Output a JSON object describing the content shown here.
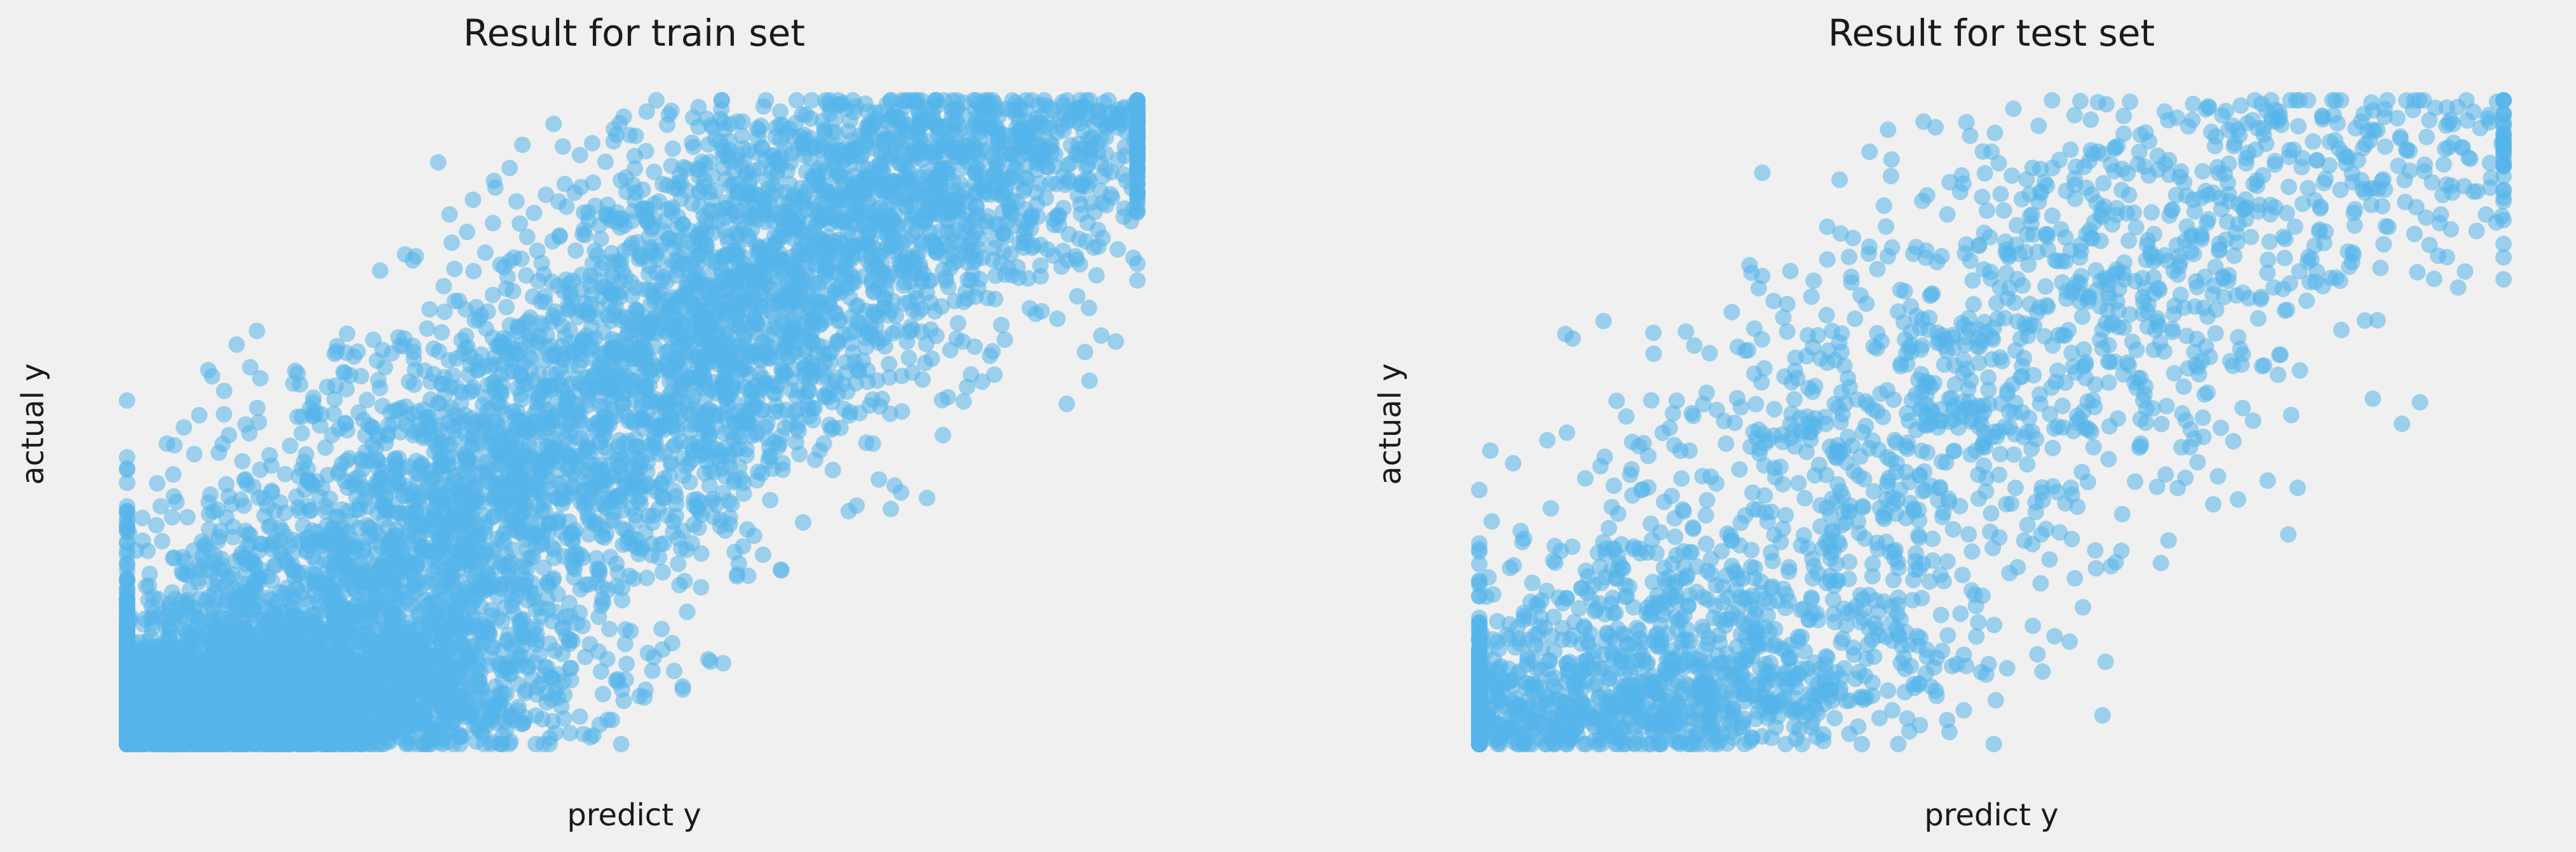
{
  "figure": {
    "background_color": "#f0f0f0",
    "point_color": "#56b4e9",
    "point_opacity": 0.55
  },
  "chart_data": [
    {
      "type": "scatter",
      "title": "Result for train set",
      "xlabel": "predict y",
      "ylabel": "actual y",
      "grid": false,
      "ticks_visible": false,
      "xlim": [
        0,
        100
      ],
      "ylim": [
        0,
        100
      ],
      "point_count_approx": 9000
    },
    {
      "type": "scatter",
      "title": "Result for test set",
      "xlabel": "predict y",
      "ylabel": "actual y",
      "grid": false,
      "ticks_visible": false,
      "xlim": [
        0,
        100
      ],
      "ylim": [
        0,
        100
      ],
      "point_count_approx": 2600
    }
  ]
}
